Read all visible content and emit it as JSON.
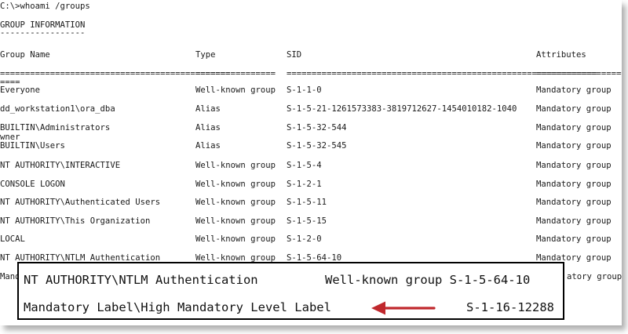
{
  "console": {
    "command": "C:\\>whoami /groups",
    "section_title": "GROUP INFORMATION",
    "section_underline": "-----------------",
    "headers": {
      "name": "Group Name",
      "type": "Type",
      "sid": "SID",
      "attributes": "Attributes"
    },
    "separators": {
      "name": "==============================================",
      "type": "================",
      "sid": "==============================================================",
      "attributes": "=================="
    },
    "wrap_line": "====",
    "rows": [
      {
        "name": "Everyone",
        "type": "Well-known group",
        "sid": "S-1-1-0",
        "attributes": "Mandatory group"
      },
      {
        "name": "dd_workstation1\\ora_dba",
        "type": "Alias",
        "sid": "S-1-5-21-1261573383-3819712627-1454010182-1040",
        "attributes": "Mandatory group"
      },
      {
        "name": "BUILTIN\\Administrators",
        "type": "Alias",
        "sid": "S-1-5-32-544",
        "attributes": "Mandatory group"
      },
      {
        "name": "BUILTIN\\Users",
        "type": "Alias",
        "sid": "S-1-5-32-545",
        "attributes": "Mandatory group"
      },
      {
        "name": "NT AUTHORITY\\INTERACTIVE",
        "type": "Well-known group",
        "sid": "S-1-5-4",
        "attributes": "Mandatory group"
      },
      {
        "name": "CONSOLE LOGON",
        "type": "Well-known group",
        "sid": "S-1-2-1",
        "attributes": "Mandatory group"
      },
      {
        "name": "NT AUTHORITY\\Authenticated Users",
        "type": "Well-known group",
        "sid": "S-1-5-11",
        "attributes": "Mandatory group"
      },
      {
        "name": "NT AUTHORITY\\This Organization",
        "type": "Well-known group",
        "sid": "S-1-5-15",
        "attributes": "Mandatory group"
      },
      {
        "name": "LOCAL",
        "type": "Well-known group",
        "sid": "S-1-2-0",
        "attributes": "Mandatory group"
      },
      {
        "name": "NT AUTHORITY\\NTLM Authentication",
        "type": "Well-known group",
        "sid": "S-1-5-64-10",
        "attributes": "Mandatory group"
      }
    ],
    "wrap_owner": "wner",
    "partial_last_row": {
      "name": "Mand",
      "attributes": "atory group"
    }
  },
  "callout": {
    "row1": {
      "name": "NT AUTHORITY\\NTLM Authentication",
      "type_sid": "Well-known group S-1-5-64-10"
    },
    "row2": {
      "name": "Mandatory Label\\High Mandatory Level Label",
      "sid": "S-1-16-12288"
    },
    "arrow_color": "#c0282d"
  }
}
